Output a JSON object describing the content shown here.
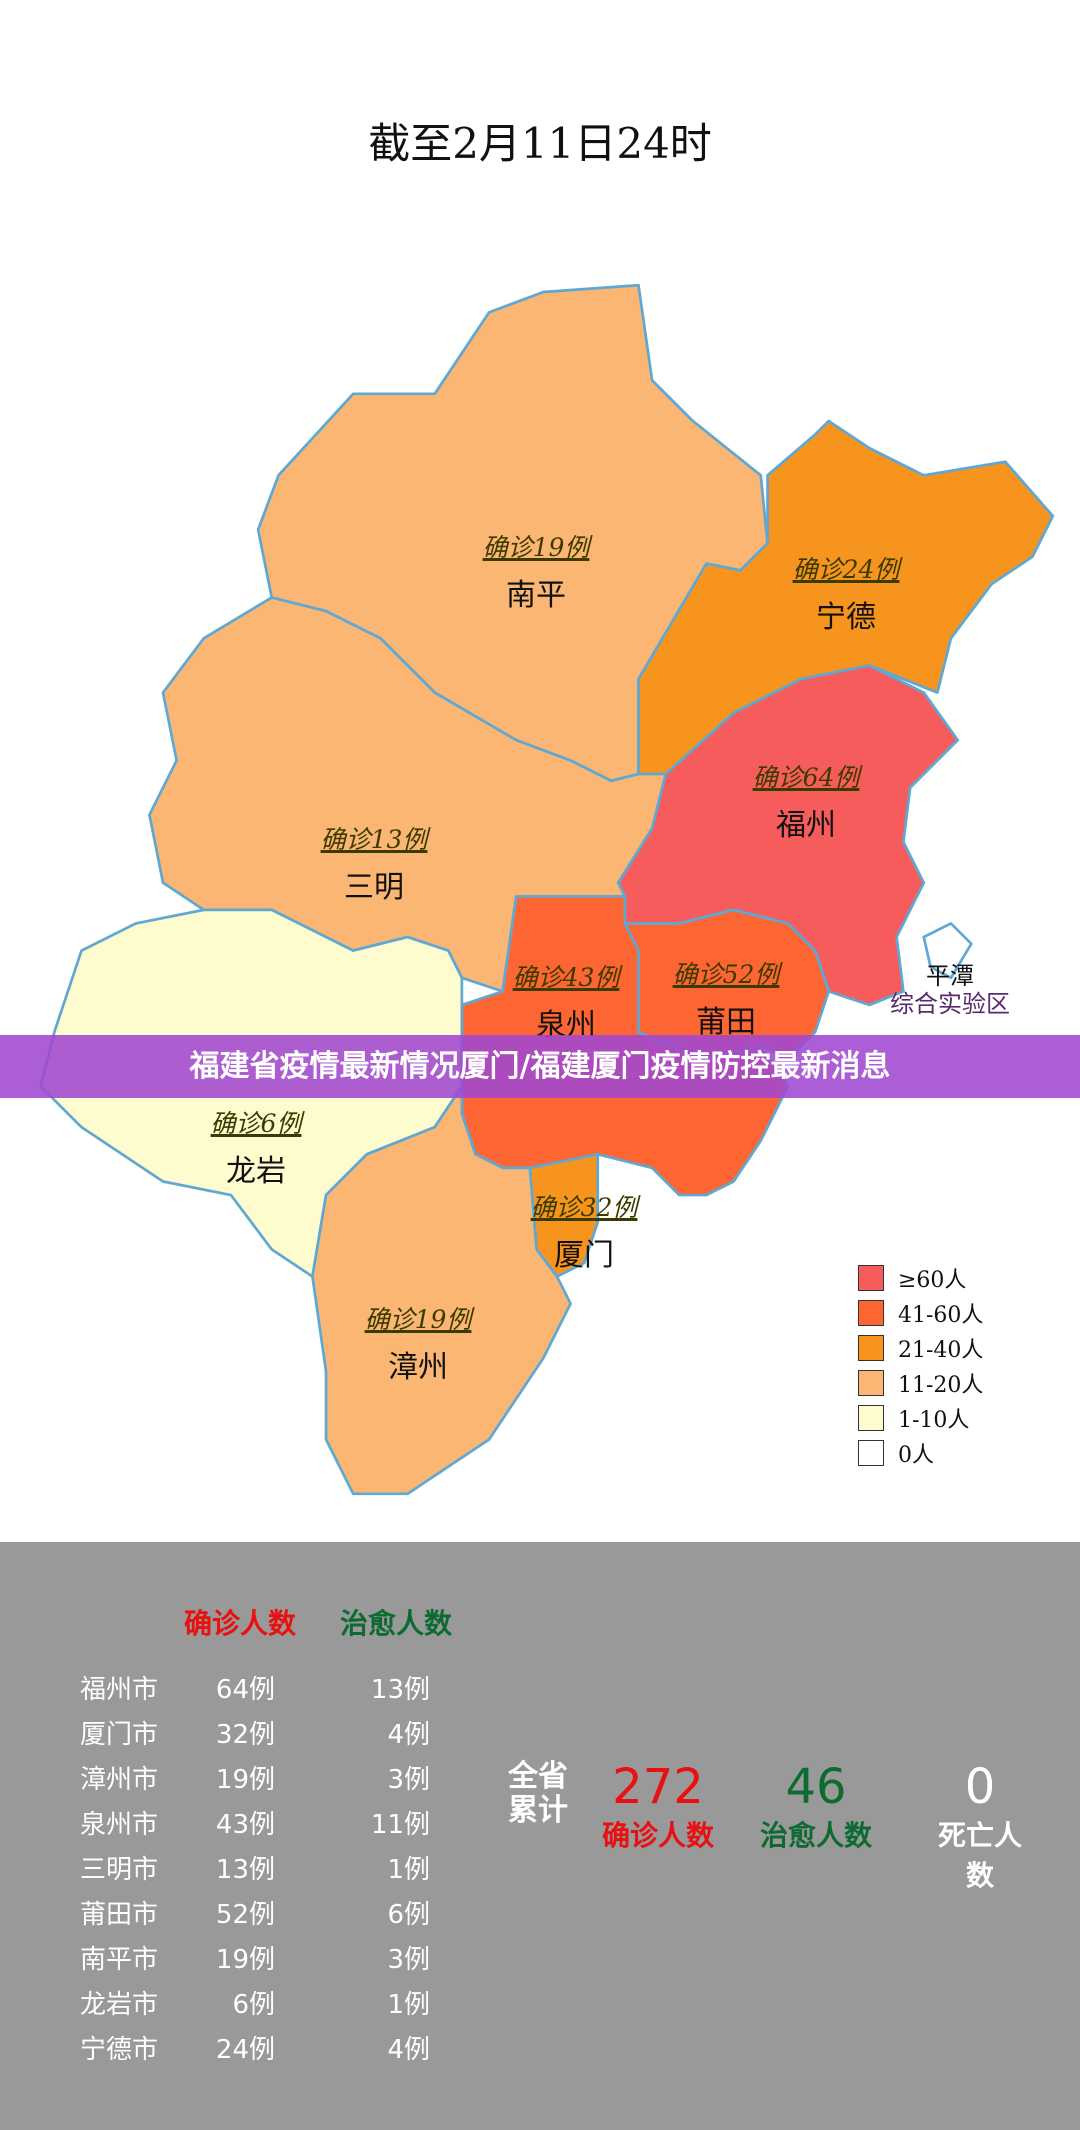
{
  "title": "截至2月11日24时",
  "banner": "福建省疫情最新情况厦门/福建厦门疫情防控最新消息",
  "colors": {
    "border": "#5fa8d3",
    "ge60": "#f75c5c",
    "41_60": "#fd6632",
    "21_40": "#f7941d",
    "11_20": "#fbb673",
    "1_10": "#fefcce",
    "zero": "#ffffff",
    "confirmed": "#e81010",
    "cured": "#0d6b32",
    "panel": "#999999"
  },
  "regions": [
    {
      "city": "南平",
      "count": "确诊19例",
      "fill": "#fbb673"
    },
    {
      "city": "宁德",
      "count": "确诊24例",
      "fill": "#f7941d"
    },
    {
      "city": "福州",
      "count": "确诊64例",
      "fill": "#f75c5c"
    },
    {
      "city": "三明",
      "count": "确诊13例",
      "fill": "#fbb673"
    },
    {
      "city": "龙岩",
      "count": "确诊6例",
      "fill": "#fefcce"
    },
    {
      "city": "泉州",
      "count": "确诊43例",
      "fill": "#fd6632"
    },
    {
      "city": "莆田",
      "count": "确诊52例",
      "fill": "#fd6632"
    },
    {
      "city": "厦门",
      "count": "确诊32例",
      "fill": "#f7941d"
    },
    {
      "city": "漳州",
      "count": "确诊19例",
      "fill": "#fbb673"
    }
  ],
  "pingtan": {
    "line1": "平潭",
    "line2": "综合实验区"
  },
  "legend": [
    {
      "label": "≥60人",
      "color": "#f75c5c"
    },
    {
      "label": "41-60人",
      "color": "#fd6632"
    },
    {
      "label": "21-40人",
      "color": "#f7941d"
    },
    {
      "label": "11-20人",
      "color": "#fbb673"
    },
    {
      "label": "1-10人",
      "color": "#fefcce"
    },
    {
      "label": "0人",
      "color": "#ffffff"
    }
  ],
  "table": {
    "headers": {
      "confirmed": "确诊人数",
      "cured": "治愈人数"
    },
    "rows": [
      {
        "city": "福州市",
        "confirmed": "64例",
        "cured": "13例"
      },
      {
        "city": "厦门市",
        "confirmed": "32例",
        "cured": "4例"
      },
      {
        "city": "漳州市",
        "confirmed": "19例",
        "cured": "3例"
      },
      {
        "city": "泉州市",
        "confirmed": "43例",
        "cured": "11例"
      },
      {
        "city": "三明市",
        "confirmed": "13例",
        "cured": "1例"
      },
      {
        "city": "莆田市",
        "confirmed": "52例",
        "cured": "6例"
      },
      {
        "city": "南平市",
        "confirmed": "19例",
        "cured": "3例"
      },
      {
        "city": "龙岩市",
        "confirmed": "6例",
        "cured": "1例"
      },
      {
        "city": "宁德市",
        "confirmed": "24例",
        "cured": "4例"
      }
    ]
  },
  "totals": {
    "label1": "全省",
    "label2": "累计",
    "confirmed": "272",
    "confirmed_label": "确诊人数",
    "cured": "46",
    "cured_label": "治愈人数",
    "deaths": "0",
    "deaths_label": "死亡人数"
  }
}
